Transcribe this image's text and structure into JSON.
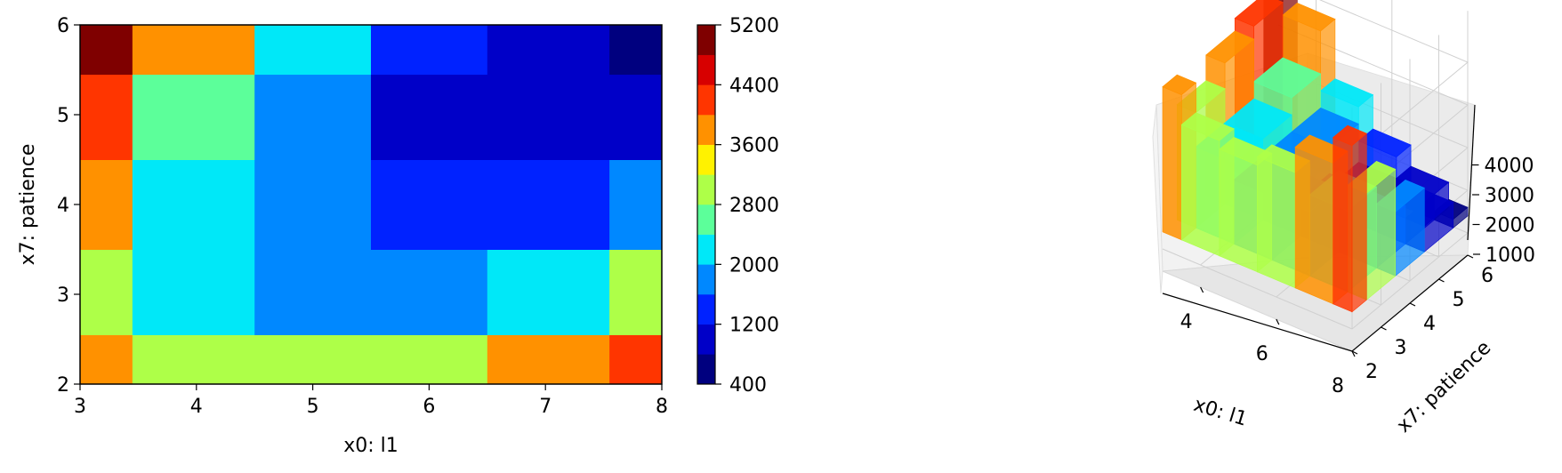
{
  "chart_data": [
    {
      "type": "heatmap",
      "subtype": "filled-contour",
      "xlabel": "x0: l1",
      "ylabel": "x7: patience",
      "xlim": [
        3,
        8
      ],
      "ylim": [
        2,
        6
      ],
      "xticks": [
        "3",
        "4",
        "5",
        "6",
        "7",
        "8"
      ],
      "yticks": [
        "2",
        "3",
        "4",
        "5",
        "6"
      ],
      "colormap": "jet",
      "colorbar": {
        "levels": [
          400,
          800,
          1200,
          1600,
          2000,
          2400,
          2800,
          3200,
          3600,
          4000,
          4400,
          4800,
          5200
        ],
        "ticks": [
          "400",
          "1200",
          "2000",
          "2800",
          "3600",
          "4400",
          "5200"
        ],
        "colors": [
          "#00007f",
          "#0000c8",
          "#0022ff",
          "#0088ff",
          "#00e8f8",
          "#5cff9a",
          "#aeff48",
          "#fff200",
          "#ff9100",
          "#ff3500",
          "#d70000",
          "#7f0000"
        ]
      },
      "x": [
        3,
        4,
        5,
        6,
        7,
        8
      ],
      "y": [
        2,
        3,
        4,
        5,
        6
      ],
      "z": [
        [
          3800,
          3100,
          2900,
          3100,
          3700,
          4300
        ],
        [
          3100,
          2300,
          1900,
          1900,
          2300,
          2900
        ],
        [
          3700,
          2300,
          1900,
          1300,
          1300,
          1900
        ],
        [
          4000,
          2700,
          1900,
          1000,
          1000,
          1000
        ],
        [
          5000,
          3700,
          2300,
          1500,
          1000,
          600
        ]
      ]
    },
    {
      "type": "surface3d",
      "xlabel": "x0: l1",
      "ylabel": "x7: patience",
      "xticks": [
        "4",
        "6",
        "8"
      ],
      "yticks": [
        "2",
        "3",
        "4",
        "5",
        "6"
      ],
      "zticks": [
        "1000",
        "2000",
        "3000",
        "4000"
      ],
      "zlim": [
        400,
        5200
      ],
      "colormap": "jet"
    }
  ]
}
